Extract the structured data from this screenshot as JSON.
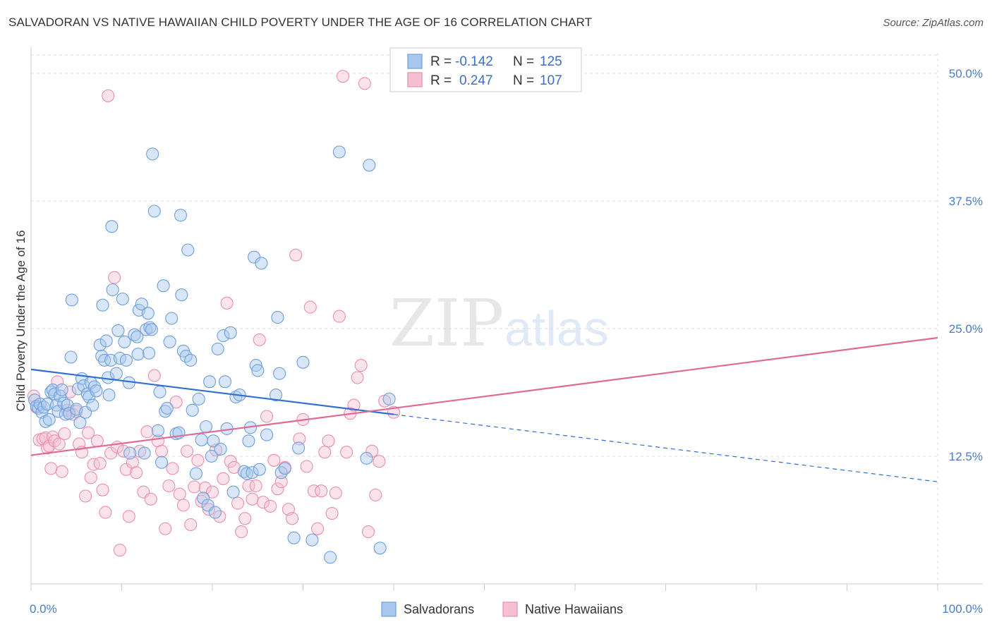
{
  "header": {
    "title": "SALVADORAN VS NATIVE HAWAIIAN CHILD POVERTY UNDER THE AGE OF 16 CORRELATION CHART",
    "source": "Source: ZipAtlas.com"
  },
  "watermark": {
    "zip": "ZIP",
    "atlas": "atlas"
  },
  "colors": {
    "blue_fill": "#a9c7ee",
    "blue_stroke": "#6d9fdc",
    "blue_line": "#2e6fcf",
    "pink_fill": "#f6c0d2",
    "pink_stroke": "#ea8fae",
    "pink_line": "#e06a96",
    "grid": "#dddddd",
    "tick_label": "#4a7cc9"
  },
  "legend": {
    "rows": [
      {
        "r_label": "R =",
        "r_value": "-0.142",
        "n_label": "N =",
        "n_value": "125",
        "series": "blue"
      },
      {
        "r_label": "R =",
        "r_value": "0.247",
        "n_label": "N =",
        "n_value": "107",
        "series": "pink"
      }
    ]
  },
  "chart_data": {
    "type": "scatter",
    "title": "SALVADORAN VS NATIVE HAWAIIAN CHILD POVERTY UNDER THE AGE OF 16 CORRELATION CHART",
    "xlabel": "",
    "ylabel": "Child Poverty Under the Age of 16",
    "xlim": [
      0,
      100
    ],
    "ylim": [
      0,
      52
    ],
    "x_tick_labels": [
      {
        "value": 0,
        "label": "0.0%"
      },
      {
        "value": 100,
        "label": "100.0%"
      }
    ],
    "x_minor_ticks": [
      0,
      10,
      20,
      30,
      40,
      50,
      60,
      70,
      80,
      90,
      100
    ],
    "y_ticks": [
      {
        "value": 12.5,
        "label": "12.5%"
      },
      {
        "value": 25.0,
        "label": "25.0%"
      },
      {
        "value": 37.5,
        "label": "37.5%"
      },
      {
        "value": 50.0,
        "label": "50.0%"
      }
    ],
    "grid": true,
    "legend_position": "top-center",
    "series": [
      {
        "name": "Salvadorans",
        "color": "blue",
        "R": -0.142,
        "N": 125,
        "trend": {
          "x0": 0,
          "y0": 21.0,
          "x_solid_end": 40,
          "x1": 100,
          "y1": 10.0
        },
        "points": [
          [
            0.4,
            18.0
          ],
          [
            0.6,
            17.4
          ],
          [
            0.8,
            17.2
          ],
          [
            1.0,
            17.6
          ],
          [
            1.2,
            16.8
          ],
          [
            1.4,
            17.3
          ],
          [
            1.6,
            15.9
          ],
          [
            1.8,
            17.6
          ],
          [
            2.0,
            16.1
          ],
          [
            2.2,
            18.8
          ],
          [
            2.4,
            19.0
          ],
          [
            2.6,
            18.6
          ],
          [
            2.8,
            17.5
          ],
          [
            3.0,
            16.9
          ],
          [
            3.2,
            18.4
          ],
          [
            3.4,
            19.0
          ],
          [
            3.6,
            17.7
          ],
          [
            3.8,
            16.6
          ],
          [
            4.0,
            17.5
          ],
          [
            4.2,
            16.7
          ],
          [
            4.4,
            22.2
          ],
          [
            4.5,
            27.8
          ],
          [
            5.0,
            17.1
          ],
          [
            5.2,
            19.1
          ],
          [
            5.4,
            15.8
          ],
          [
            5.6,
            20.1
          ],
          [
            5.8,
            19.4
          ],
          [
            6.0,
            16.8
          ],
          [
            6.2,
            18.6
          ],
          [
            6.4,
            18.3
          ],
          [
            6.6,
            19.7
          ],
          [
            6.8,
            17.5
          ],
          [
            7.0,
            19.3
          ],
          [
            7.2,
            18.9
          ],
          [
            7.6,
            23.4
          ],
          [
            7.8,
            22.3
          ],
          [
            7.9,
            27.3
          ],
          [
            8.1,
            21.9
          ],
          [
            8.3,
            23.8
          ],
          [
            8.5,
            20.2
          ],
          [
            8.6,
            18.5
          ],
          [
            8.8,
            21.9
          ],
          [
            8.9,
            35.0
          ],
          [
            9.0,
            28.8
          ],
          [
            9.4,
            20.6
          ],
          [
            9.6,
            24.8
          ],
          [
            9.8,
            22.1
          ],
          [
            10.1,
            27.9
          ],
          [
            10.3,
            23.7
          ],
          [
            10.5,
            21.9
          ],
          [
            10.8,
            19.7
          ],
          [
            10.9,
            12.8
          ],
          [
            11.4,
            24.4
          ],
          [
            11.7,
            24.2
          ],
          [
            11.8,
            22.5
          ],
          [
            11.9,
            26.8
          ],
          [
            12.2,
            27.4
          ],
          [
            12.5,
            12.8
          ],
          [
            12.7,
            24.9
          ],
          [
            12.9,
            26.5
          ],
          [
            13.0,
            22.6
          ],
          [
            13.1,
            25.1
          ],
          [
            13.3,
            24.9
          ],
          [
            13.4,
            42.1
          ],
          [
            13.6,
            36.5
          ],
          [
            14.0,
            15.0
          ],
          [
            14.2,
            18.8
          ],
          [
            14.4,
            11.9
          ],
          [
            14.6,
            29.2
          ],
          [
            14.8,
            16.9
          ],
          [
            15.0,
            17.2
          ],
          [
            15.3,
            23.7
          ],
          [
            15.5,
            26.0
          ],
          [
            16.0,
            14.7
          ],
          [
            16.3,
            14.8
          ],
          [
            16.5,
            36.1
          ],
          [
            16.6,
            28.3
          ],
          [
            16.8,
            22.8
          ],
          [
            17.1,
            22.3
          ],
          [
            17.3,
            32.7
          ],
          [
            17.6,
            21.9
          ],
          [
            17.8,
            17.0
          ],
          [
            18.2,
            10.8
          ],
          [
            18.5,
            18.1
          ],
          [
            18.8,
            14.1
          ],
          [
            19.0,
            8.4
          ],
          [
            19.3,
            15.4
          ],
          [
            19.5,
            7.7
          ],
          [
            19.7,
            19.8
          ],
          [
            19.9,
            12.5
          ],
          [
            20.1,
            14.0
          ],
          [
            20.3,
            7.0
          ],
          [
            20.6,
            23.0
          ],
          [
            20.9,
            13.2
          ],
          [
            21.2,
            24.3
          ],
          [
            21.4,
            19.8
          ],
          [
            21.6,
            15.2
          ],
          [
            22.0,
            24.6
          ],
          [
            22.3,
            9.0
          ],
          [
            22.6,
            18.3
          ],
          [
            23.0,
            18.5
          ],
          [
            23.5,
            11.0
          ],
          [
            23.8,
            10.8
          ],
          [
            24.0,
            14.0
          ],
          [
            24.2,
            15.3
          ],
          [
            24.4,
            10.9
          ],
          [
            24.6,
            32.0
          ],
          [
            24.8,
            21.4
          ],
          [
            25.0,
            20.9
          ],
          [
            25.2,
            11.2
          ],
          [
            25.4,
            31.4
          ],
          [
            26.0,
            14.6
          ],
          [
            27.0,
            18.5
          ],
          [
            27.2,
            26.1
          ],
          [
            27.4,
            20.6
          ],
          [
            27.6,
            10.9
          ],
          [
            28.0,
            11.3
          ],
          [
            29.0,
            4.5
          ],
          [
            29.5,
            13.3
          ],
          [
            30.0,
            21.7
          ],
          [
            31.0,
            4.3
          ],
          [
            33.0,
            2.6
          ],
          [
            34.0,
            42.3
          ],
          [
            37.0,
            12.3
          ],
          [
            37.3,
            41.0
          ],
          [
            38.5,
            3.5
          ],
          [
            39.5,
            18.1
          ]
        ]
      },
      {
        "name": "Native Hawaiians",
        "color": "pink",
        "R": 0.247,
        "N": 107,
        "trend": {
          "x0": 0,
          "y0": 12.6,
          "x1": 100,
          "y1": 24.1
        },
        "points": [
          [
            0.3,
            18.4
          ],
          [
            0.6,
            17.3
          ],
          [
            0.9,
            14.1
          ],
          [
            1.3,
            14.2
          ],
          [
            1.6,
            14.3
          ],
          [
            1.8,
            13.3
          ],
          [
            2.0,
            13.5
          ],
          [
            2.2,
            11.3
          ],
          [
            2.4,
            14.4
          ],
          [
            2.6,
            14.0
          ],
          [
            2.9,
            19.8
          ],
          [
            3.1,
            13.7
          ],
          [
            3.4,
            11.0
          ],
          [
            3.7,
            14.7
          ],
          [
            4.0,
            17.0
          ],
          [
            4.3,
            18.8
          ],
          [
            4.6,
            16.6
          ],
          [
            5.0,
            16.9
          ],
          [
            5.3,
            13.7
          ],
          [
            5.6,
            12.9
          ],
          [
            6.0,
            8.6
          ],
          [
            6.3,
            14.8
          ],
          [
            6.6,
            10.4
          ],
          [
            6.9,
            11.7
          ],
          [
            7.3,
            14.0
          ],
          [
            7.6,
            11.8
          ],
          [
            7.9,
            9.2
          ],
          [
            8.2,
            7.0
          ],
          [
            8.5,
            47.8
          ],
          [
            8.8,
            12.8
          ],
          [
            9.2,
            30.0
          ],
          [
            9.5,
            13.4
          ],
          [
            9.8,
            3.3
          ],
          [
            10.2,
            13.0
          ],
          [
            10.5,
            11.2
          ],
          [
            10.8,
            6.6
          ],
          [
            11.2,
            11.9
          ],
          [
            11.6,
            10.9
          ],
          [
            12.0,
            13.0
          ],
          [
            12.4,
            9.0
          ],
          [
            12.8,
            14.9
          ],
          [
            13.2,
            8.3
          ],
          [
            13.6,
            20.4
          ],
          [
            14.0,
            14.0
          ],
          [
            14.4,
            13.0
          ],
          [
            14.8,
            5.4
          ],
          [
            15.2,
            9.6
          ],
          [
            15.6,
            11.3
          ],
          [
            16.0,
            17.8
          ],
          [
            16.4,
            8.8
          ],
          [
            16.8,
            7.7
          ],
          [
            17.2,
            13.0
          ],
          [
            17.6,
            5.8
          ],
          [
            18.0,
            9.5
          ],
          [
            18.4,
            12.1
          ],
          [
            18.8,
            8.1
          ],
          [
            19.2,
            9.4
          ],
          [
            19.6,
            7.3
          ],
          [
            20.0,
            9.0
          ],
          [
            20.4,
            13.1
          ],
          [
            20.8,
            6.6
          ],
          [
            21.2,
            10.3
          ],
          [
            21.6,
            27.5
          ],
          [
            22.0,
            12.0
          ],
          [
            22.4,
            11.4
          ],
          [
            22.8,
            7.9
          ],
          [
            23.2,
            5.1
          ],
          [
            23.6,
            6.4
          ],
          [
            24.0,
            9.6
          ],
          [
            24.4,
            8.3
          ],
          [
            24.8,
            9.6
          ],
          [
            25.2,
            23.9
          ],
          [
            25.6,
            8.0
          ],
          [
            26.0,
            16.4
          ],
          [
            26.4,
            7.6
          ],
          [
            26.8,
            12.1
          ],
          [
            27.2,
            9.3
          ],
          [
            27.6,
            10.0
          ],
          [
            28.0,
            11.4
          ],
          [
            28.4,
            7.3
          ],
          [
            28.8,
            6.4
          ],
          [
            29.2,
            32.2
          ],
          [
            29.6,
            14.2
          ],
          [
            30.0,
            16.1
          ],
          [
            30.4,
            11.5
          ],
          [
            30.8,
            27.1
          ],
          [
            31.2,
            9.1
          ],
          [
            31.6,
            5.4
          ],
          [
            32.0,
            9.1
          ],
          [
            32.4,
            12.9
          ],
          [
            32.8,
            14.0
          ],
          [
            33.2,
            6.9
          ],
          [
            33.6,
            8.9
          ],
          [
            34.0,
            26.2
          ],
          [
            34.4,
            49.7
          ],
          [
            34.8,
            12.9
          ],
          [
            35.2,
            16.7
          ],
          [
            35.6,
            17.5
          ],
          [
            36.0,
            20.2
          ],
          [
            36.4,
            21.4
          ],
          [
            36.8,
            49.0
          ],
          [
            37.2,
            5.1
          ],
          [
            37.6,
            13.0
          ],
          [
            38.0,
            8.7
          ],
          [
            38.4,
            12.0
          ],
          [
            39.0,
            17.9
          ],
          [
            40.0,
            16.8
          ]
        ]
      }
    ]
  },
  "bottom_legend": {
    "items": [
      {
        "label": "Salvadorans",
        "series": "blue"
      },
      {
        "label": "Native Hawaiians",
        "series": "pink"
      }
    ]
  }
}
